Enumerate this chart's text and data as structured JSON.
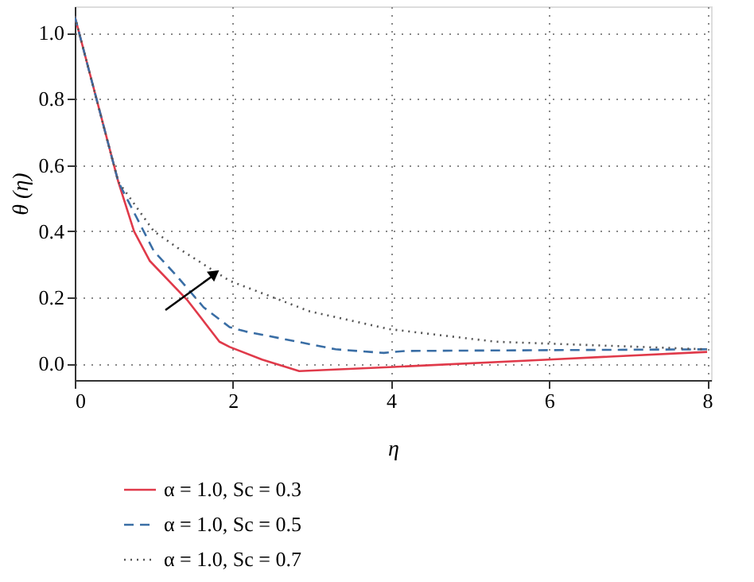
{
  "chart_data": {
    "type": "line",
    "xlabel": "η",
    "ylabel": "θ (η)",
    "xlim": [
      0,
      8.05
    ],
    "ylim": [
      -0.05,
      1.08
    ],
    "xticks": [
      0,
      2,
      4,
      6,
      8
    ],
    "yticks": [
      {
        "value": 0,
        "label": "0.0"
      },
      {
        "value": 0.2,
        "label": "0.2"
      },
      {
        "value": 0.4,
        "label": "0.4"
      },
      {
        "value": 0.6,
        "label": "0.6"
      },
      {
        "value": 0.8,
        "label": "0.8"
      },
      {
        "value": 1,
        "label": "1.0"
      }
    ],
    "grid": true,
    "legend": "bottom left",
    "marker": "none",
    "series": [
      {
        "name": "α = 1.0, Sc = 0.3",
        "color": "#e03a4a",
        "line_style": "solid",
        "x": [
          0,
          0.55,
          0.75,
          0.95,
          1.43,
          1.83,
          1.96,
          2.37,
          2.84,
          3.98,
          6.0,
          8.0
        ],
        "values": [
          1.05,
          0.55,
          0.4,
          0.31,
          0.19,
          0.066,
          0.05,
          0.012,
          -0.023,
          -0.011,
          0.012,
          0.035
        ]
      },
      {
        "name": "α = 1.0, Sc = 0.5",
        "color": "#3a6ea5",
        "line_style": "dashed",
        "x": [
          0,
          0.55,
          1.0,
          1.29,
          1.63,
          1.96,
          2.16,
          3.3,
          3.91,
          4.18,
          8.0
        ],
        "values": [
          1.05,
          0.55,
          0.34,
          0.265,
          0.17,
          0.11,
          0.097,
          0.043,
          0.032,
          0.038,
          0.043
        ]
      },
      {
        "name": "α = 1.0, Sc = 0.7",
        "color": "#555555",
        "line_style": "dotted",
        "x": [
          0,
          0.55,
          1.0,
          1.3,
          1.96,
          2.97,
          3.98,
          5.32,
          8.0
        ],
        "values": [
          1.05,
          0.55,
          0.4,
          0.35,
          0.25,
          0.158,
          0.104,
          0.066,
          0.043
        ]
      }
    ]
  }
}
